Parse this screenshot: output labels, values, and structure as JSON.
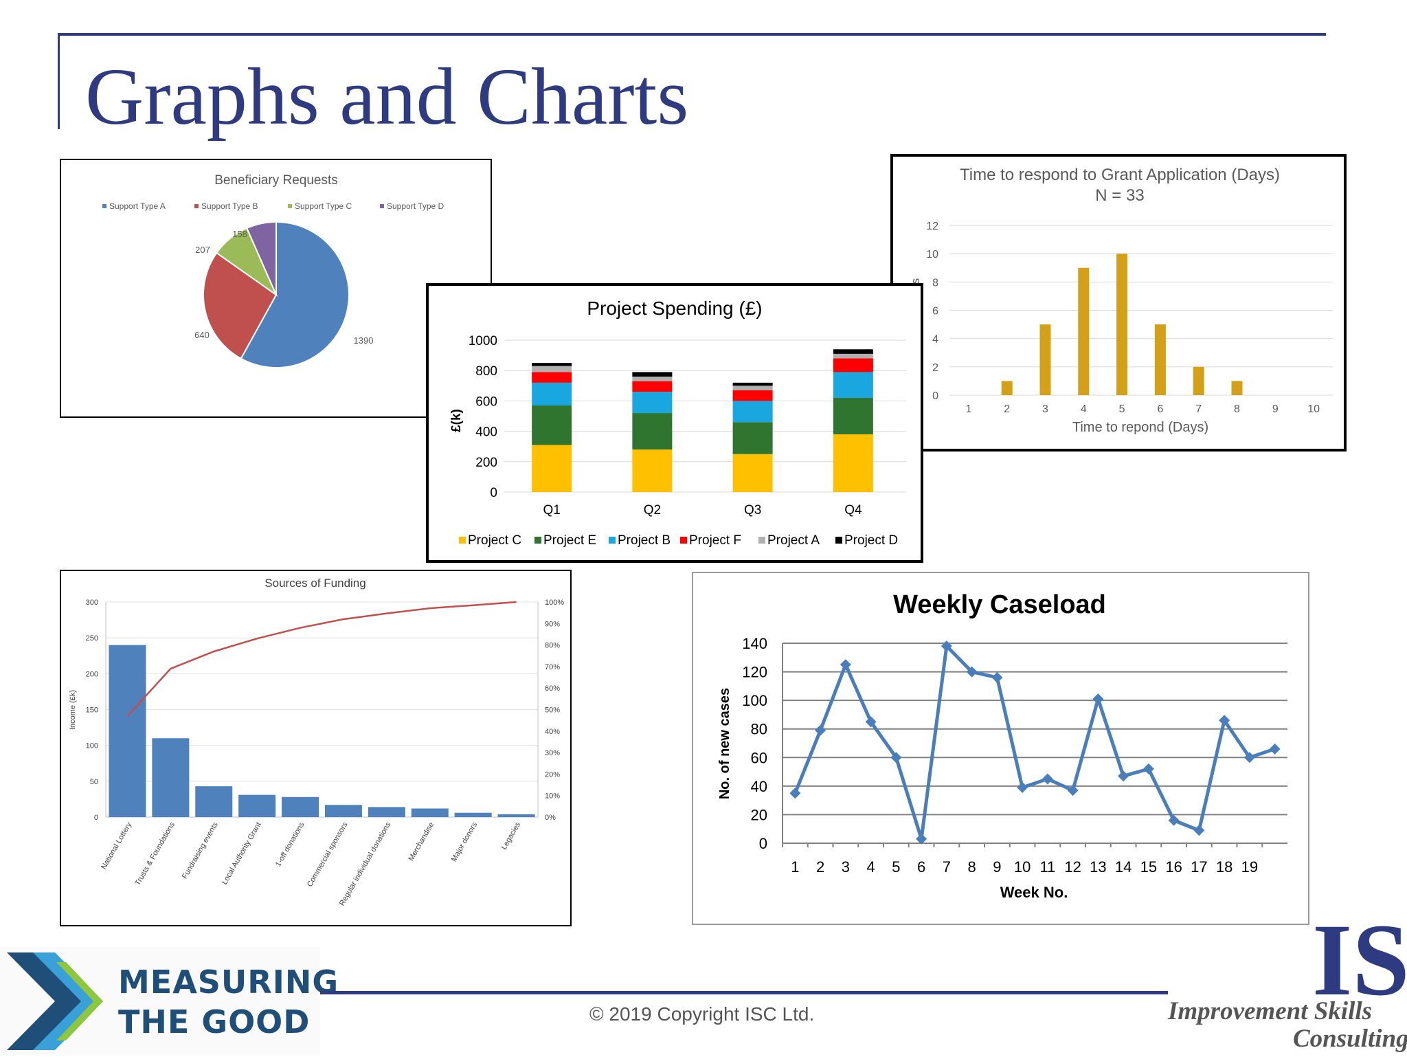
{
  "slide": {
    "title": "Graphs and Charts",
    "copyright": "© 2019 Copyright ISC Ltd.",
    "logo_left": {
      "line1": "MEASURING",
      "line2": "THE GOOD"
    },
    "logo_right": {
      "mark": "IS",
      "line1": "Improvement Skills",
      "line2": "Consulting"
    }
  },
  "chart_data": [
    {
      "id": "pie",
      "type": "pie",
      "title": "Beneficiary Requests",
      "categories": [
        "Support Type  A",
        "Support Type  B",
        "Support Type C",
        "Support Type  D"
      ],
      "values": [
        1390,
        640,
        207,
        158
      ],
      "data_labels": [
        "1390",
        "640",
        "207",
        "158"
      ],
      "colors": [
        "#4f81bd",
        "#c0504d",
        "#9bbb59",
        "#8064a2"
      ],
      "legend": "top"
    },
    {
      "id": "grant",
      "type": "bar",
      "title": "Time to respond to Grant Application (Days)",
      "subtitle": "N = 33",
      "categories": [
        "1",
        "2",
        "3",
        "4",
        "5",
        "6",
        "7",
        "8",
        "9",
        "10"
      ],
      "values": [
        0,
        1,
        5,
        9,
        10,
        5,
        2,
        1,
        0,
        0
      ],
      "xlabel": "Time to repond (Days)",
      "ylabel": "No. of cases",
      "ylim": [
        0,
        12
      ],
      "yticks": [
        "0",
        "2",
        "4",
        "6",
        "8",
        "10",
        "12"
      ],
      "color": "#d4a017",
      "grid": true
    },
    {
      "id": "spending",
      "type": "bar",
      "stacked": true,
      "title": "Project Spending (£)",
      "categories": [
        "Q1",
        "Q2",
        "Q3",
        "Q4"
      ],
      "series": [
        {
          "name": "Project C",
          "values": [
            310,
            280,
            250,
            380
          ],
          "color": "#ffc000"
        },
        {
          "name": "Project E",
          "values": [
            260,
            240,
            210,
            240
          ],
          "color": "#2f7530"
        },
        {
          "name": "Project B",
          "values": [
            150,
            140,
            140,
            170
          ],
          "color": "#1aa7e0"
        },
        {
          "name": "Project F",
          "values": [
            70,
            70,
            70,
            90
          ],
          "color": "#ff0000"
        },
        {
          "name": "Project A",
          "values": [
            40,
            30,
            30,
            30
          ],
          "color": "#b0b0b0"
        },
        {
          "name": "Project D",
          "values": [
            20,
            30,
            20,
            30
          ],
          "color": "#000000"
        }
      ],
      "ylabel": "£(k)",
      "ylim": [
        0,
        1000
      ],
      "yticks": [
        "0",
        "200",
        "400",
        "600",
        "800",
        "1000"
      ],
      "legend": "bottom",
      "grid": true
    },
    {
      "id": "funding",
      "type": "bar",
      "title": "Sources of Funding",
      "categories": [
        "National Lottery",
        "Trusts & Foundations",
        "Fundraising events",
        "Local Authority Grant",
        "1-off donations",
        "Commercial sponsors",
        "Regular individual donations",
        "Merchandise",
        "Major donors",
        "Legacies"
      ],
      "values": [
        240,
        110,
        43,
        31,
        28,
        17,
        14,
        12,
        6,
        4
      ],
      "cumulative_percent": [
        47,
        69,
        77,
        83,
        88,
        92,
        94.7,
        97.1,
        98.5,
        100
      ],
      "ylabel": "Income (£k)",
      "ylim": [
        0,
        300
      ],
      "yticks": [
        "0",
        "50",
        "100",
        "150",
        "200",
        "250",
        "300"
      ],
      "y2lim": [
        0,
        100
      ],
      "y2ticks": [
        "0%",
        "10%",
        "20%",
        "30%",
        "40%",
        "50%",
        "60%",
        "70%",
        "80%",
        "90%",
        "100%"
      ],
      "bar_color": "#4f81bd",
      "line_color": "#c0504d",
      "grid": true
    },
    {
      "id": "caseload",
      "type": "line",
      "title": "Weekly Caseload",
      "x": [
        "1",
        "2",
        "3",
        "4",
        "5",
        "6",
        "7",
        "8",
        "9",
        "10",
        "11",
        "12",
        "13",
        "14",
        "15",
        "16",
        "17",
        "18",
        "19",
        ""
      ],
      "values": [
        35,
        79,
        125,
        85,
        60,
        3,
        138,
        120,
        116,
        39,
        45,
        37,
        101,
        47,
        52,
        16,
        9,
        86,
        60,
        66
      ],
      "xlabel": "Week No.",
      "ylabel": "No. of new cases",
      "ylim": [
        0,
        140
      ],
      "yticks": [
        "0",
        "20",
        "40",
        "60",
        "80",
        "100",
        "120",
        "140"
      ],
      "color": "#4a7ebb",
      "grid": true
    }
  ]
}
